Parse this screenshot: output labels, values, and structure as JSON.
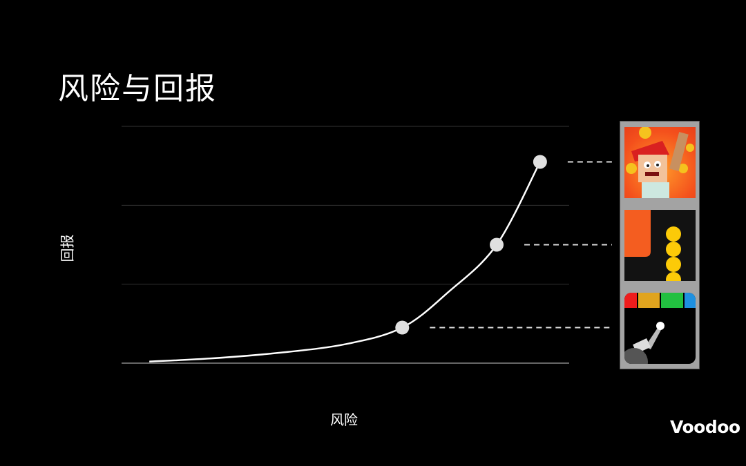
{
  "slide": {
    "title": "风险与回报",
    "logo": "Voodoo"
  },
  "chart_data": {
    "type": "line",
    "title": "风险与回报",
    "xlabel": "风险",
    "ylabel": "回报",
    "xlim": [
      0,
      100
    ],
    "ylim": [
      0,
      3
    ],
    "grid": true,
    "curve": {
      "x": [
        6.2,
        20,
        35,
        50,
        62.7,
        73,
        83.8,
        93.5
      ],
      "y": [
        0.02,
        0.06,
        0.13,
        0.24,
        0.45,
        0.9,
        1.5,
        2.55
      ]
    },
    "markers": [
      {
        "x": 62.7,
        "y": 0.45,
        "game_icon": "cannon-ball-blocks-game-icon"
      },
      {
        "x": 83.8,
        "y": 1.5,
        "game_icon": "snake-balls-game-icon"
      },
      {
        "x": 93.5,
        "y": 2.55,
        "game_icon": "blocky-character-coins-game-icon"
      }
    ],
    "colors": {
      "line": "#ffffff",
      "marker": "#e0e0e0",
      "grid": "#333333",
      "background": "#000000"
    }
  }
}
